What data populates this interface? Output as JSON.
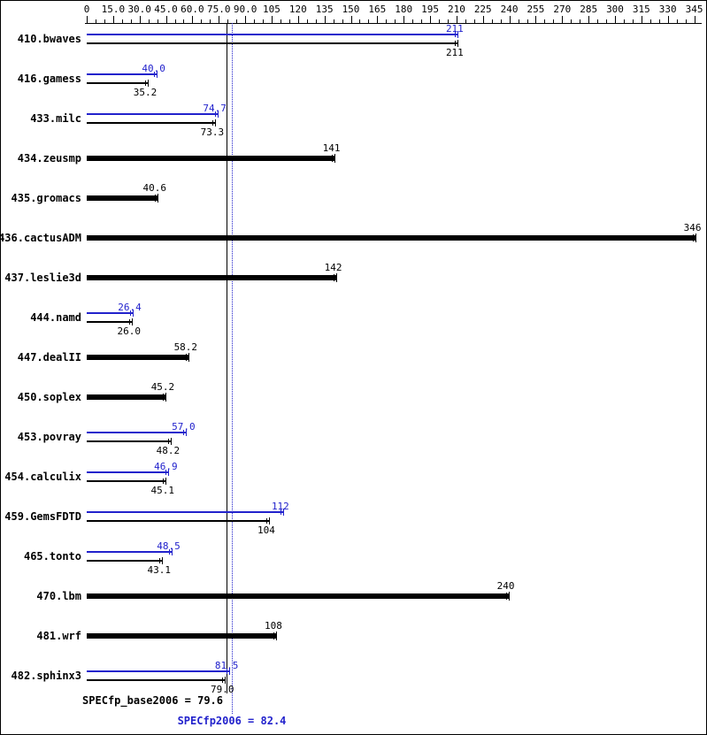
{
  "colors": {
    "peak": "#2222cc",
    "base": "#000000",
    "background": "#ffffff",
    "border": "#000000"
  },
  "chart_data": {
    "type": "bar",
    "orientation": "horizontal",
    "title": "",
    "xlabel": "",
    "ylabel": "",
    "xlim": [
      0,
      348
    ],
    "x_tick_step": 15,
    "x_minor_tick_step": 5,
    "grid": false,
    "x_tick_labels": [
      "0",
      "15.0",
      "30.0",
      "45.0",
      "60.0",
      "75.0",
      "90.0",
      "105",
      "120",
      "135",
      "150",
      "165",
      "180",
      "195",
      "210",
      "225",
      "240",
      "255",
      "270",
      "285",
      "300",
      "315",
      "330",
      "345"
    ],
    "categories": [
      "410.bwaves",
      "416.gamess",
      "433.milc",
      "434.zeusmp",
      "435.gromacs",
      "436.cactusADM",
      "437.leslie3d",
      "444.namd",
      "447.dealII",
      "450.soplex",
      "453.povray",
      "454.calculix",
      "459.GemsFDTD",
      "465.tonto",
      "470.lbm",
      "481.wrf",
      "482.sphinx3"
    ],
    "series": [
      {
        "name": "peak",
        "color": "#2222cc",
        "values": [
          211,
          40.0,
          74.7,
          null,
          null,
          null,
          null,
          26.4,
          null,
          null,
          57.0,
          46.9,
          112,
          48.5,
          null,
          null,
          81.5
        ],
        "labels": [
          "211",
          "40.0",
          "74.7",
          null,
          null,
          null,
          null,
          "26.4",
          null,
          null,
          "57.0",
          "46.9",
          "112",
          "48.5",
          null,
          null,
          "81.5"
        ]
      },
      {
        "name": "base",
        "color": "#000000",
        "values": [
          211,
          35.2,
          73.3,
          141,
          40.6,
          346,
          142,
          26.0,
          58.2,
          45.2,
          48.2,
          45.1,
          104,
          43.1,
          240,
          108,
          79.0
        ],
        "labels": [
          "211",
          "35.2",
          "73.3",
          "141",
          "40.6",
          "346",
          "142",
          "26.0",
          "58.2",
          "45.2",
          "48.2",
          "45.1",
          "104",
          "43.1",
          "240",
          "108",
          "79.0"
        ]
      }
    ],
    "mean_lines": [
      {
        "name": "base_mean",
        "label": "SPECfp_base2006 = 79.6",
        "value": 79.6,
        "color": "#000000",
        "style": "solid"
      },
      {
        "name": "peak_mean",
        "label": "SPECfp2006 = 82.4",
        "value": 82.4,
        "color": "#2222cc",
        "style": "dotted"
      }
    ]
  }
}
